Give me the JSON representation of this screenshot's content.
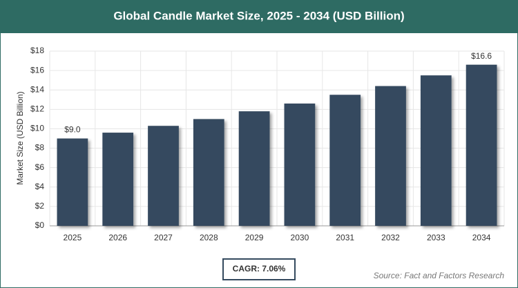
{
  "chart_data": {
    "type": "bar",
    "title": "Global Candle Market Size, 2025 - 2034 (USD Billion)",
    "y_label": "Market Size (USD Billion)",
    "categories": [
      "2025",
      "2026",
      "2027",
      "2028",
      "2029",
      "2030",
      "2031",
      "2032",
      "2033",
      "2034"
    ],
    "values": [
      9.0,
      9.6,
      10.3,
      11.0,
      11.8,
      12.6,
      13.5,
      14.4,
      15.5,
      16.6
    ],
    "value_labels": [
      "$9.0",
      null,
      null,
      null,
      null,
      null,
      null,
      null,
      null,
      "$16.6"
    ],
    "color": "#34495e",
    "ylim": [
      0,
      18
    ],
    "yticks": [
      {
        "value": 0,
        "label": "$0"
      },
      {
        "value": 2,
        "label": "$2"
      },
      {
        "value": 4,
        "label": "$4"
      },
      {
        "value": 6,
        "label": "$6"
      },
      {
        "value": 8,
        "label": "$8"
      },
      {
        "value": 10,
        "label": "$10"
      },
      {
        "value": 12,
        "label": "$12"
      },
      {
        "value": 14,
        "label": "$14"
      },
      {
        "value": 16,
        "label": "$16"
      },
      {
        "value": 18,
        "label": "$18"
      }
    ],
    "grid": true,
    "annotation": "CAGR: 7.06%",
    "source": "Source: Fact and Factors Research"
  }
}
